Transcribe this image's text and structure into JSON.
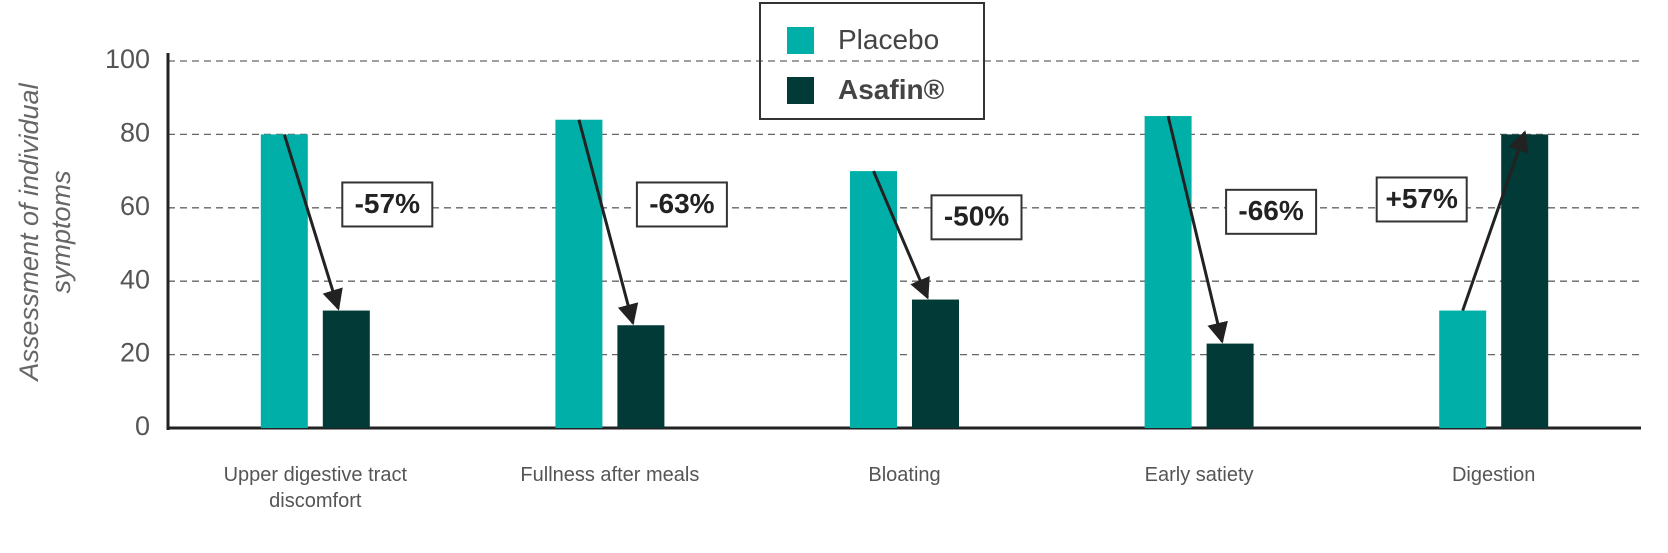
{
  "chart_data": {
    "type": "bar",
    "y_label": "Assessment of individual symptoms",
    "categories": [
      "Upper digestive tract discomfort",
      "Fullness after meals",
      "Bloating",
      "Early satiety",
      "Digestion"
    ],
    "series": [
      {
        "name": "Placebo",
        "color": "#00b0a8",
        "values": [
          80,
          84,
          70,
          85,
          32
        ]
      },
      {
        "name": "Asafin®",
        "color": "#023a37",
        "values": [
          32,
          28,
          35,
          23,
          80
        ]
      }
    ],
    "annotations": [
      "-57%",
      "-63%",
      "-50%",
      "-66%",
      "+57%"
    ],
    "ylim": [
      0,
      100
    ],
    "yticks": [
      0,
      20,
      40,
      60,
      80,
      100
    ],
    "grid": true
  }
}
